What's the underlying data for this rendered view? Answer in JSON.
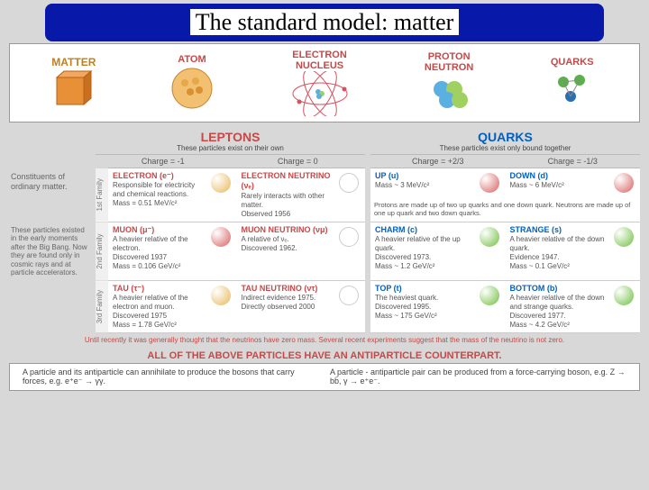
{
  "title": "The standard model: matter",
  "hierarchy": {
    "matter": "MATTER",
    "atom": "ATOM",
    "electron": "ELECTRON",
    "nucleus": "NUCLEUS",
    "proton": "PROTON",
    "neutron": "NEUTRON",
    "quarks": "QUARKS"
  },
  "leptons": {
    "name": "LEPTONS",
    "sub": "These particles exist on their own",
    "charge_a": "Charge = -1",
    "charge_b": "Charge = 0",
    "color": "#c74848"
  },
  "quarks": {
    "name": "QUARKS",
    "sub": "These particles exist only bound together",
    "charge_a": "Charge = +2/3",
    "charge_b": "Charge = -1/3",
    "color": "#0060c0"
  },
  "row_labels": {
    "f1": "Constituents of ordinary matter.",
    "f2": "These particles existed in the early moments after the Big Bang. Now they are found only in cosmic rays and at particle accelerators."
  },
  "families": [
    {
      "label": "1st Family",
      "lepton_a": {
        "name": "ELECTRON (e⁻)",
        "desc": "Responsible for electricity and chemical reactions.",
        "mass": "Mass = 0.51 MeV/c²",
        "ball": "#e7b85a"
      },
      "lepton_b": {
        "name": "ELECTRON NEUTRINO (νₑ)",
        "desc": "Rarely interacts with other matter.",
        "mass": "Observed 1956",
        "ball": "#ffffff"
      },
      "quark_a": {
        "name": "UP (u)",
        "desc": "",
        "mass": "Mass ~ 3 MeV/c²",
        "ball": "#d86060"
      },
      "quark_b": {
        "name": "DOWN (d)",
        "desc": "",
        "mass": "Mass ~ 6 MeV/c²",
        "ball": "#d86060"
      },
      "quark_note": "Protons are made up of two up quarks and one down quark. Neutrons are made up of one up quark and two down quarks."
    },
    {
      "label": "2nd Family",
      "lepton_a": {
        "name": "MUON (μ⁻)",
        "desc": "A heavier relative of the electron.",
        "mass": "Discovered 1937\nMass = 0.106 GeV/c²",
        "ball": "#d86060"
      },
      "lepton_b": {
        "name": "MUON NEUTRINO (νμ)",
        "desc": "A relative of νₑ.",
        "mass": "Discovered 1962.",
        "ball": "#ffffff"
      },
      "quark_a": {
        "name": "CHARM (c)",
        "desc": "A heavier relative of the up quark.",
        "mass": "Discovered 1973.\nMass ~ 1.2 GeV/c²",
        "ball": "#6fbf3f"
      },
      "quark_b": {
        "name": "STRANGE (s)",
        "desc": "A heavier relative of the down quark.",
        "mass": "Evidence 1947.\nMass ~ 0.1 GeV/c²",
        "ball": "#6fbf3f"
      }
    },
    {
      "label": "3rd Family",
      "lepton_a": {
        "name": "TAU (τ⁻)",
        "desc": "A heavier relative of the electron and muon.",
        "mass": "Discovered 1975\nMass = 1.78 GeV/c²",
        "ball": "#e7b85a"
      },
      "lepton_b": {
        "name": "TAU NEUTRINO (ντ)",
        "desc": "Indirect evidence 1975.",
        "mass": "Directly observed 2000",
        "ball": "#ffffff"
      },
      "quark_a": {
        "name": "TOP (t)",
        "desc": "The heaviest quark.",
        "mass": "Discovered 1995.\nMass ~ 175 GeV/c²",
        "ball": "#6fbf3f"
      },
      "quark_b": {
        "name": "BOTTOM (b)",
        "desc": "A heavier relative of the down and strange quarks.",
        "mass": "Discovered 1977.\nMass ~ 4.2 GeV/c²",
        "ball": "#6fbf3f"
      }
    }
  ],
  "neutrino_note": "Until recently it was generally thought that the neutrinos have zero mass. Several recent experiments suggest that the mass of the neutrino is not zero.",
  "footer": {
    "head": "ALL OF THE ABOVE PARTICLES HAVE AN ANTIPARTICLE COUNTERPART.",
    "left": "A particle and its antiparticle can annihilate to produce the bosons that carry forces, e.g.  e⁺e⁻ → γγ.",
    "right": "A particle - antiparticle pair can be produced from a force-carrying boson, e.g.  Z → bb̄,  γ → e⁺e⁻."
  },
  "colors": {
    "title_bg": "#0818a8",
    "matter_cube": "#e89038",
    "atom_ball": "#e7a74a",
    "electron_orbit": "#d85060",
    "nucleon_a": "#5ab0e0",
    "nucleon_b": "#a0d060",
    "quark_up": "#5ab04a",
    "quark_down": "#2a6fb0"
  }
}
